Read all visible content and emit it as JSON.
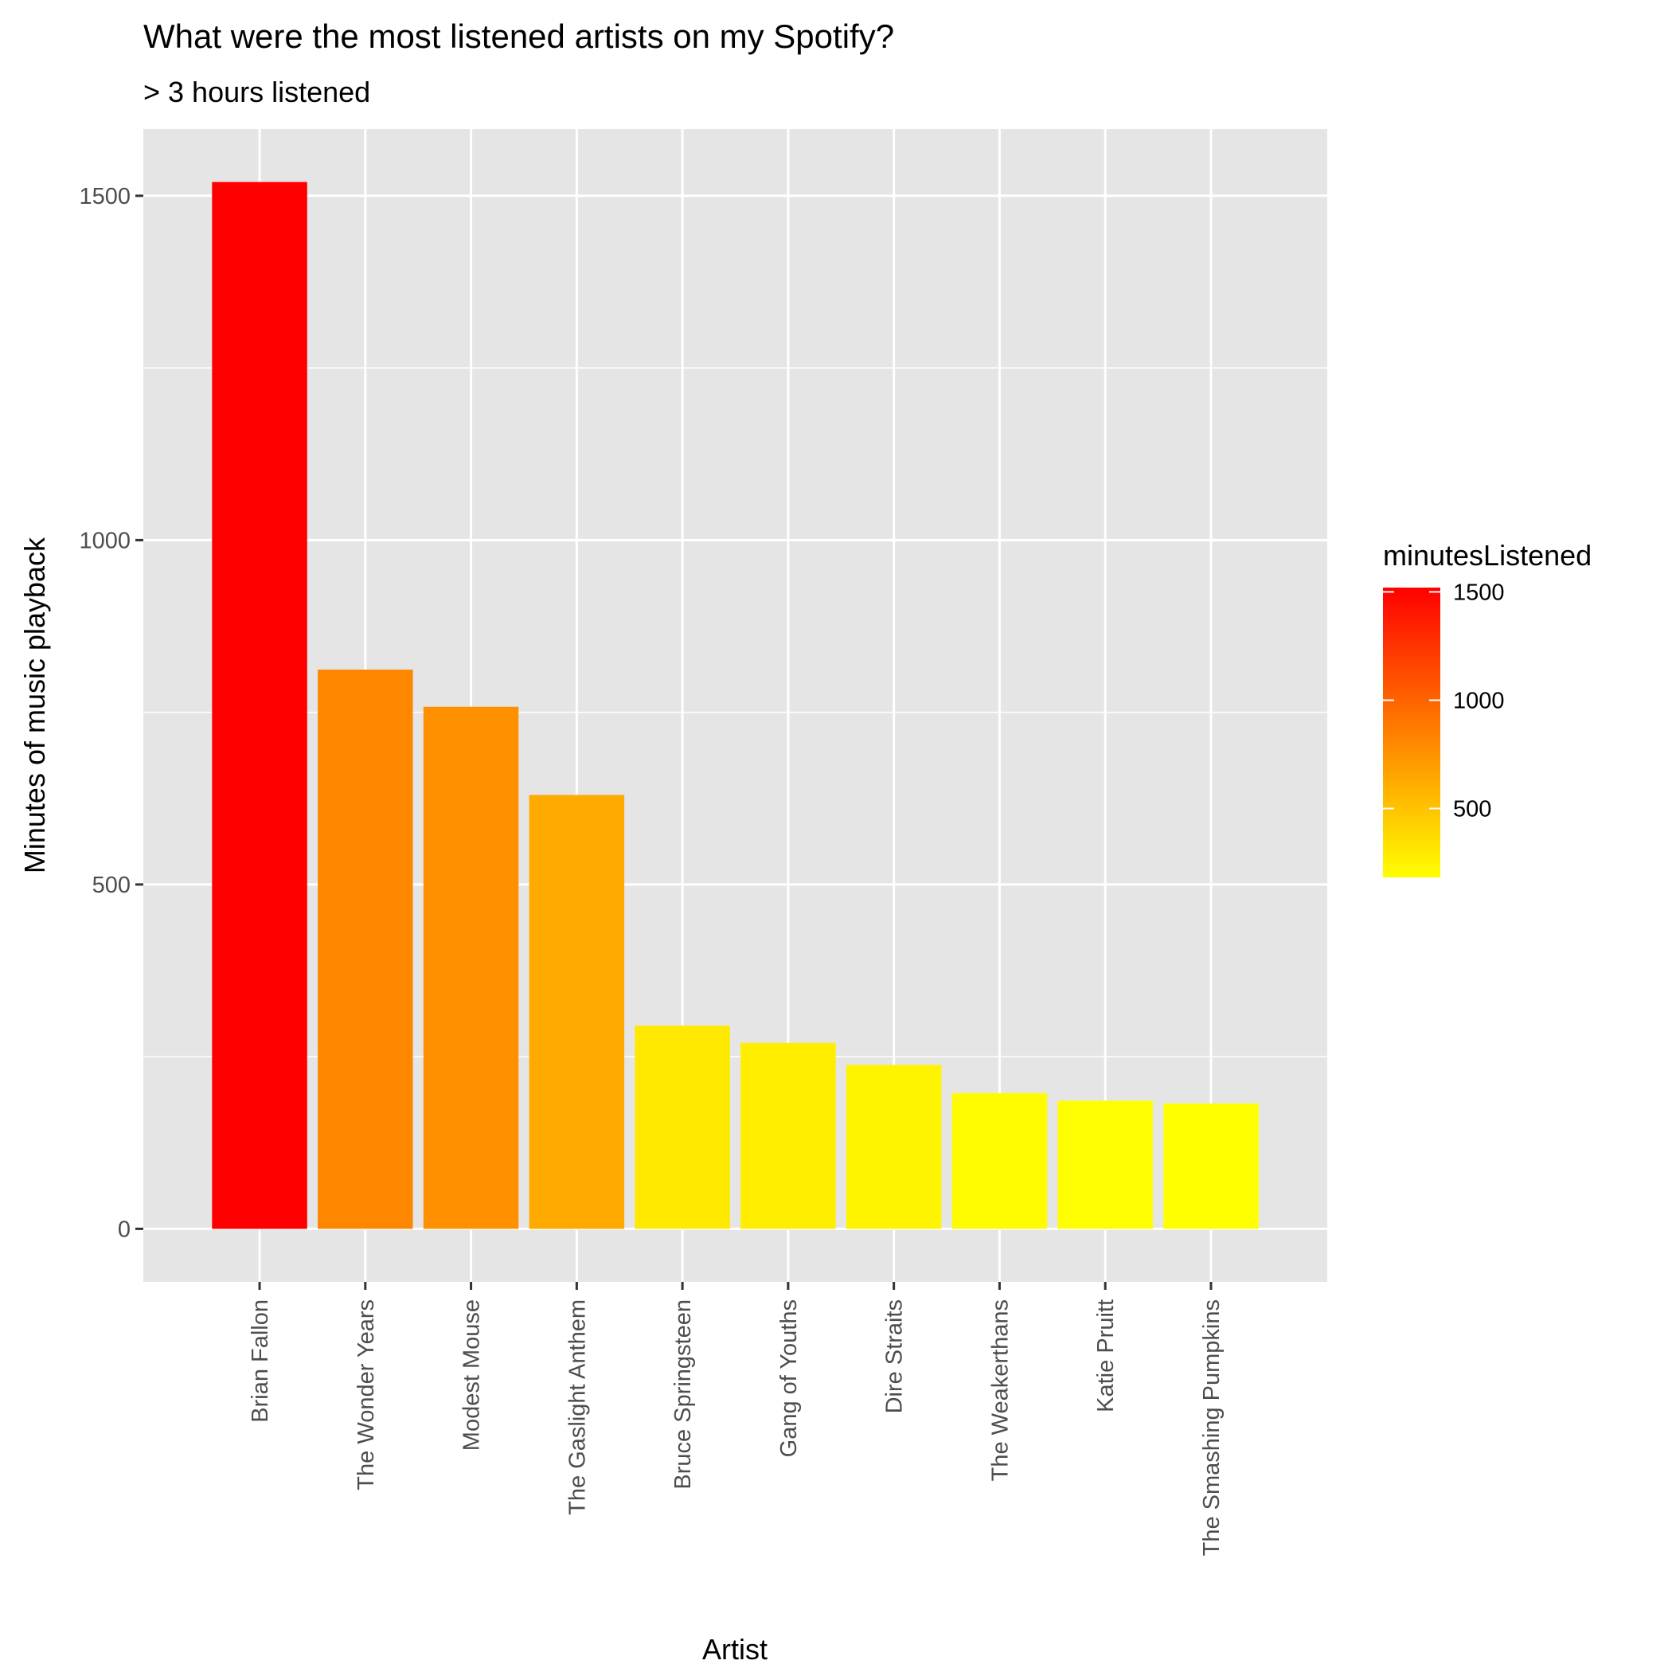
{
  "chart_data": {
    "type": "bar",
    "title": "What were the most listened artists on my Spotify?",
    "subtitle": "> 3 hours listened",
    "xlabel": "Artist",
    "ylabel": "Minutes of music playback",
    "categories": [
      "Brian Fallon",
      "The Wonder Years",
      "Modest Mouse",
      "The Gaslight Anthem",
      "Bruce Springsteen",
      "Gang of Youths",
      "Dire Straits",
      "The Weakerthans",
      "Katie Pruitt",
      "The Smashing Pumpkins"
    ],
    "values": [
      1520,
      812,
      758,
      630,
      295,
      270,
      238,
      197,
      186,
      182
    ],
    "ylim": [
      -77,
      1597
    ],
    "yticks": [
      0,
      500,
      1000,
      1500
    ],
    "grid": true,
    "legend": {
      "title": "minutesListened",
      "position": "right",
      "range": [
        182,
        1520
      ],
      "ticks": [
        500,
        1000,
        1500
      ],
      "low_color": "#FFFF00",
      "high_color": "#FF0000"
    },
    "colors": {
      "panel": "#E5E5E5",
      "grid": "#FFFFFF",
      "tick_text": "#4D4D4D"
    }
  }
}
